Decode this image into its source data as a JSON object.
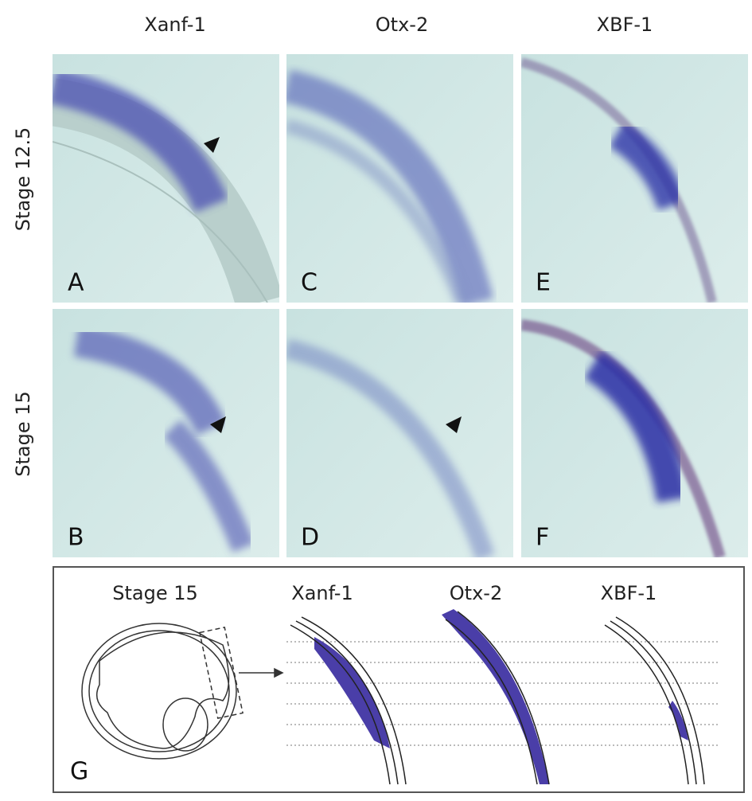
{
  "column_headers": [
    "Xanf-1",
    "Otx-2",
    "XBF-1"
  ],
  "row_labels": [
    "Stage 12.5",
    "Stage 15"
  ],
  "panels": [
    {
      "label": "A"
    },
    {
      "label": "C"
    },
    {
      "label": "E"
    },
    {
      "label": "B"
    },
    {
      "label": "D"
    },
    {
      "label": "F"
    }
  ],
  "schematic": {
    "title": "Stage 15",
    "labels": [
      "Xanf-1",
      "Otx-2",
      "XBF-1"
    ],
    "panel_label": "G"
  }
}
